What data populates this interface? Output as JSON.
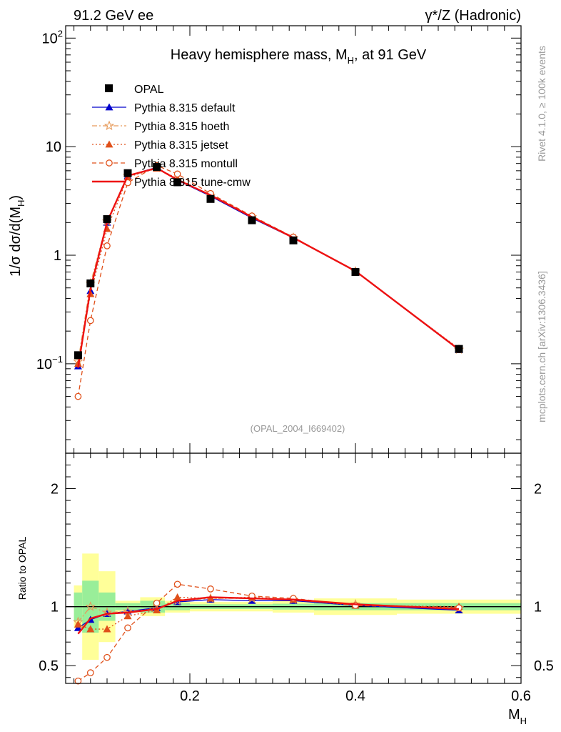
{
  "header": {
    "left": "91.2 GeV ee",
    "right_sym": "γ*/Z",
    "right_txt": " (Hadronic)"
  },
  "side": {
    "top": "Rivet 4.1.0, ≥ 100k events",
    "bottom": "mcplots.cern.ch [arXiv:1306.3436]"
  },
  "chart_data": {
    "type": "line",
    "title": "Heavy hemisphere mass, M",
    "title_sub": "H",
    "title_suffix": ", at 91 GeV",
    "ylabel_main": "1/σ  dσ/d(M",
    "ylabel_sub": "H",
    "ylabel_end": ")",
    "ylabel_ratio": "Ratio to OPAL",
    "xlabel": "M",
    "xlabel_sub": "H",
    "watermark": "(OPAL_2004_I669402)",
    "xlim": [
      0.05,
      0.6
    ],
    "ylim": [
      0.015,
      130
    ],
    "ratio_ylim": [
      0.35,
      2.3
    ],
    "main_yticks": [
      {
        "v": 0.1,
        "base": "10",
        "exp": "−1"
      },
      {
        "v": 1,
        "base": "1",
        "exp": ""
      },
      {
        "v": 10,
        "base": "10",
        "exp": ""
      },
      {
        "v": 100,
        "base": "10",
        "exp": "2"
      }
    ],
    "x_ticks": [
      {
        "v": 0.2,
        "label": "0.2"
      },
      {
        "v": 0.4,
        "label": "0.4"
      },
      {
        "v": 0.6,
        "label": "0.6"
      }
    ],
    "ratio_ticks": [
      {
        "v": 0.5,
        "label": "0.5"
      },
      {
        "v": 1,
        "label": "1"
      },
      {
        "v": 2,
        "label": "2"
      }
    ],
    "x": [
      0.065,
      0.08,
      0.1,
      0.125,
      0.16,
      0.185,
      0.225,
      0.275,
      0.325,
      0.4,
      0.525
    ],
    "bins": [
      [
        0.06,
        0.07
      ],
      [
        0.07,
        0.09
      ],
      [
        0.09,
        0.11
      ],
      [
        0.11,
        0.14
      ],
      [
        0.14,
        0.17
      ],
      [
        0.17,
        0.2
      ],
      [
        0.2,
        0.25
      ],
      [
        0.25,
        0.3
      ],
      [
        0.3,
        0.35
      ],
      [
        0.35,
        0.45
      ],
      [
        0.45,
        0.6
      ]
    ],
    "data": {
      "name": "OPAL",
      "values": [
        0.12,
        0.55,
        2.15,
        5.7,
        6.5,
        4.7,
        3.3,
        2.1,
        1.37,
        0.7,
        0.137
      ]
    },
    "band_stat": [
      0.12,
      0.22,
      0.12,
      0.03,
      0.05,
      0.03,
      0.02,
      0.02,
      0.025,
      0.03,
      0.03
    ],
    "band_tot": [
      0.18,
      0.45,
      0.3,
      0.05,
      0.08,
      0.05,
      0.04,
      0.04,
      0.05,
      0.07,
      0.06
    ],
    "series": [
      {
        "name": "Pythia 8.315 default",
        "color": "#0000cc",
        "dash": "",
        "marker": "tri-filled",
        "values": [
          0.095,
          0.47,
          2.0,
          5.4,
          6.45,
          4.9,
          3.5,
          2.2,
          1.44,
          0.71,
          0.134
        ]
      },
      {
        "name": "Pythia 8.315 hoeth",
        "color": "#e69a5a",
        "dash": "7,3,2,3",
        "marker": "star",
        "values": [
          0.105,
          0.55,
          2.05,
          5.4,
          6.4,
          4.95,
          3.55,
          2.25,
          1.45,
          0.71,
          0.135
        ]
      },
      {
        "name": "Pythia 8.315 jetset",
        "color": "#e0501a",
        "dash": "2,3",
        "marker": "tri-filled",
        "values": [
          0.1,
          0.44,
          1.75,
          5.25,
          6.3,
          5.1,
          3.55,
          2.27,
          1.45,
          0.71,
          0.138
        ]
      },
      {
        "name": "Pythia 8.315 montull",
        "color": "#e0501a",
        "dash": "6,4",
        "marker": "circle-open",
        "values": [
          0.05,
          0.25,
          1.22,
          4.65,
          6.7,
          5.6,
          3.7,
          2.3,
          1.47,
          0.71,
          0.135
        ]
      },
      {
        "name": "Pythia 8.315 tune-cmw",
        "color": "#ee1111",
        "dash": "",
        "marker": "none",
        "values": [
          0.092,
          0.49,
          2.02,
          5.4,
          6.35,
          4.95,
          3.58,
          2.25,
          1.45,
          0.715,
          0.135
        ]
      }
    ],
    "ratio_series": [
      [
        0.82,
        0.89,
        0.94,
        0.96,
        0.99,
        1.04,
        1.06,
        1.05,
        1.05,
        1.01,
        0.97
      ],
      [
        0.87,
        1.0,
        0.95,
        0.96,
        0.98,
        1.05,
        1.07,
        1.07,
        1.06,
        1.02,
        0.99
      ],
      [
        0.85,
        0.81,
        0.81,
        0.92,
        0.97,
        1.08,
        1.07,
        1.08,
        1.06,
        1.01,
        1.0
      ],
      [
        0.37,
        0.44,
        0.57,
        0.82,
        1.03,
        1.19,
        1.15,
        1.09,
        1.07,
        1.01,
        0.99
      ],
      [
        0.77,
        0.9,
        0.94,
        0.95,
        0.98,
        1.05,
        1.08,
        1.07,
        1.06,
        1.02,
        0.98
      ]
    ]
  }
}
